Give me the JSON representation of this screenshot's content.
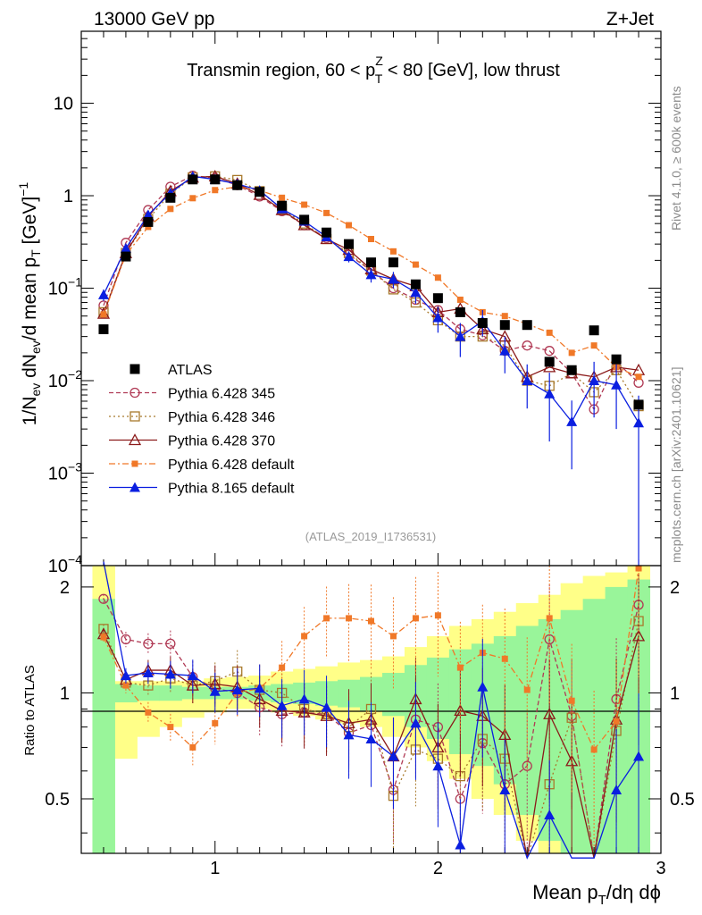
{
  "header": {
    "left": "13000 GeV pp",
    "right": "Z+Jet"
  },
  "side": {
    "rivet": "Rivet 4.1.0, ≥ 600k events",
    "mcplots": "mcplots.cern.ch [arXiv:2401.10621]"
  },
  "chart_data": [
    {
      "type": "line",
      "title": "Transmin region, 60 < p_T^Z < 80 [GeV], low thrust",
      "title_parts": {
        "pre": "Transmin region, 60 < p",
        "sup": "Z",
        "sub": "T",
        "post": " < 80 [GeV], low thrust"
      },
      "analysis_id": "(ATLAS_2019_I1736531)",
      "ylabel": "1/N_ev dN_ev/d mean p_T [GeV]^-1",
      "yscale": "log",
      "xlim": [
        0.4,
        3.0
      ],
      "ylim": [
        0.0001,
        60
      ],
      "y_ticks": [
        {
          "v": 10,
          "label": "10"
        },
        {
          "v": 1,
          "label": "1"
        },
        {
          "v": 0.1,
          "label": "10",
          "exp": "−1"
        },
        {
          "v": 0.01,
          "label": "10",
          "exp": "−2"
        },
        {
          "v": 0.001,
          "label": "10",
          "exp": "−3"
        },
        {
          "v": 0.0001,
          "label": "10",
          "exp": "−4"
        }
      ],
      "x": [
        0.5,
        0.6,
        0.7,
        0.8,
        0.9,
        1.0,
        1.1,
        1.2,
        1.3,
        1.4,
        1.5,
        1.6,
        1.7,
        1.8,
        1.9,
        2.0,
        2.1,
        2.2,
        2.3,
        2.4,
        2.5,
        2.6,
        2.7,
        2.8,
        2.9
      ],
      "legend": {
        "placement": "center-left",
        "entries": [
          "ATLAS",
          "Pythia 6.428 345",
          "Pythia 6.428 346",
          "Pythia 6.428 370",
          "Pythia 6.428 default",
          "Pythia 8.165 default"
        ]
      },
      "series": [
        {
          "name": "ATLAS",
          "color": "#000000",
          "marker": "square-filled",
          "dash": "none",
          "values": [
            0.036,
            0.22,
            0.52,
            0.95,
            1.5,
            1.5,
            1.3,
            1.1,
            0.78,
            0.55,
            0.4,
            0.3,
            0.19,
            0.19,
            0.11,
            0.078,
            0.055,
            0.042,
            0.04,
            0.04,
            0.016,
            0.013,
            0.035,
            0.017,
            0.0055
          ]
        },
        {
          "name": "Pythia 6.428 345",
          "color": "#b03a55",
          "marker": "circle-open",
          "dash": "5,3",
          "values": [
            0.065,
            0.31,
            0.7,
            1.25,
            1.65,
            1.55,
            1.3,
            0.98,
            0.68,
            0.48,
            0.35,
            0.23,
            0.155,
            0.1,
            0.075,
            0.058,
            0.036,
            0.031,
            0.021,
            0.024,
            0.021,
            0.012,
            0.0049,
            0.016,
            0.0095
          ]
        },
        {
          "name": "Pythia 6.428 346",
          "color": "#a8792c",
          "marker": "square-open",
          "dash": "2,3",
          "values": [
            0.055,
            0.24,
            0.56,
            1.05,
            1.58,
            1.62,
            1.48,
            1.12,
            0.72,
            0.5,
            0.34,
            0.24,
            0.155,
            0.097,
            0.07,
            0.045,
            0.03,
            0.03,
            0.024,
            0.01,
            0.0088,
            0.012,
            0.0075,
            0.013,
            0.0053
          ]
        },
        {
          "name": "Pythia 6.428 370",
          "color": "#8b1a1a",
          "marker": "triangle-open",
          "dash": "none",
          "values": [
            0.053,
            0.24,
            0.6,
            1.12,
            1.57,
            1.62,
            1.35,
            1.02,
            0.7,
            0.48,
            0.34,
            0.26,
            0.16,
            0.125,
            0.105,
            0.055,
            0.06,
            0.036,
            0.03,
            0.011,
            0.014,
            0.012,
            0.011,
            0.014,
            0.013
          ]
        },
        {
          "name": "Pythia 6.428 default",
          "color": "#f07828",
          "marker": "square-small-filled",
          "dash": "7,3,2,3",
          "values": [
            0.052,
            0.23,
            0.46,
            0.72,
            0.94,
            1.15,
            1.25,
            1.14,
            0.95,
            0.8,
            0.65,
            0.48,
            0.34,
            0.25,
            0.18,
            0.13,
            0.075,
            0.055,
            0.05,
            0.041,
            0.033,
            0.02,
            0.024,
            0.014,
            0.011
          ]
        },
        {
          "name": "Pythia 8.165 default",
          "color": "#0a1ee0",
          "marker": "triangle-filled",
          "dash": "none",
          "values": [
            0.085,
            0.27,
            0.62,
            1.07,
            1.62,
            1.5,
            1.34,
            1.14,
            0.72,
            0.53,
            0.36,
            0.22,
            0.14,
            0.125,
            0.09,
            0.048,
            0.03,
            0.044,
            0.021,
            0.01,
            0.0072,
            0.0036,
            0.01,
            0.009,
            0.0035
          ]
        }
      ],
      "errors": {
        "Pythia 8.165 default": [
          0.012,
          0.02,
          0.04,
          0.06,
          0.07,
          0.07,
          0.07,
          0.06,
          0.05,
          0.04,
          0.035,
          0.03,
          0.025,
          0.025,
          0.022,
          0.015,
          0.012,
          0.014,
          0.009,
          0.005,
          0.005,
          0.0025,
          0.006,
          0.006,
          0.0034
        ]
      }
    },
    {
      "type": "line",
      "title": "",
      "ylabel": "Ratio to ATLAS",
      "xlabel": "Mean p_T/dη dϕ",
      "xlabel_parts": {
        "pre": "Mean p",
        "sub": "T",
        "post": "/dη dϕ"
      },
      "xlim": [
        0.4,
        3.0
      ],
      "ylim": [
        0.35,
        2.3
      ],
      "x_ticks": [
        1,
        2,
        3
      ],
      "y_ticks": [
        0.5,
        1,
        2
      ],
      "reference_line": 1,
      "bands": {
        "x_low": [
          0.45,
          0.55,
          0.65,
          0.75,
          0.85,
          0.95,
          1.05,
          1.15,
          1.25,
          1.35,
          1.45,
          1.55,
          1.65,
          1.75,
          1.85,
          1.95,
          2.05,
          2.15,
          2.25,
          2.35,
          2.45,
          2.55,
          2.65,
          2.75,
          2.85
        ],
        "stat_up": [
          1.85,
          1.06,
          1.05,
          1.05,
          1.04,
          1.04,
          1.04,
          1.05,
          1.06,
          1.07,
          1.08,
          1.09,
          1.11,
          1.14,
          1.2,
          1.26,
          1.33,
          1.38,
          1.45,
          1.55,
          1.62,
          1.72,
          1.85,
          2.0,
          2.1
        ],
        "stat_down": [
          0.35,
          0.94,
          0.95,
          0.95,
          0.96,
          0.96,
          0.96,
          0.95,
          0.94,
          0.93,
          0.92,
          0.91,
          0.89,
          0.86,
          0.8,
          0.74,
          0.67,
          0.62,
          0.55,
          0.45,
          0.38,
          0.35,
          0.35,
          0.35,
          0.35
        ],
        "tot_up": [
          2.3,
          1.08,
          1.08,
          1.08,
          1.08,
          1.1,
          1.11,
          1.12,
          1.15,
          1.17,
          1.19,
          1.22,
          1.24,
          1.27,
          1.35,
          1.45,
          1.55,
          1.62,
          1.7,
          1.8,
          1.9,
          2.05,
          2.15,
          2.2,
          2.3
        ],
        "tot_down": [
          0.35,
          0.65,
          0.75,
          0.8,
          0.85,
          0.88,
          0.9,
          0.9,
          0.88,
          0.86,
          0.84,
          0.82,
          0.8,
          0.75,
          0.7,
          0.64,
          0.57,
          0.5,
          0.45,
          0.38,
          0.35,
          0.35,
          0.35,
          0.35,
          0.35
        ],
        "colors": {
          "total": "#ffff88",
          "stat": "#99f59a"
        }
      },
      "series": [
        {
          "name": "Pythia 6.428 345",
          "color": "#b03a55",
          "marker": "circle-open",
          "dash": "5,3",
          "values": [
            1.85,
            1.42,
            1.38,
            1.38,
            1.11,
            1.03,
            1.0,
            0.91,
            0.87,
            0.88,
            0.87,
            0.77,
            0.81,
            0.53,
            0.84,
            0.8,
            0.5,
            0.72,
            0.55,
            0.62,
            1.42,
            0.86,
            0.14,
            0.96,
            1.78
          ]
        },
        {
          "name": "Pythia 6.428 346",
          "color": "#a8792c",
          "marker": "square-open",
          "dash": "2,3",
          "values": [
            1.52,
            1.07,
            1.05,
            1.1,
            1.05,
            1.08,
            1.15,
            1.02,
            1.0,
            0.9,
            0.87,
            0.8,
            0.9,
            0.51,
            0.69,
            0.65,
            0.58,
            0.74,
            0.65,
            0.26,
            0.55,
            0.85,
            0.23,
            0.78,
            1.6
          ]
        },
        {
          "name": "Pythia 6.428 370",
          "color": "#8b1a1a",
          "marker": "triangle-open",
          "dash": "none",
          "values": [
            1.47,
            1.09,
            1.16,
            1.16,
            1.05,
            1.06,
            1.04,
            0.96,
            0.89,
            0.88,
            0.86,
            0.82,
            0.84,
            0.66,
            0.96,
            0.7,
            0.89,
            0.86,
            0.76,
            0.33,
            0.87,
            0.64,
            0.31,
            0.84,
            1.45
          ]
        },
        {
          "name": "Pythia 6.428 default",
          "color": "#f07828",
          "marker": "square-small-filled",
          "dash": "7,3,2,3",
          "values": [
            1.44,
            1.05,
            0.88,
            0.8,
            0.7,
            0.82,
            1.0,
            1.03,
            1.18,
            1.45,
            1.63,
            1.63,
            1.6,
            1.45,
            1.63,
            1.66,
            1.18,
            1.3,
            1.25,
            1.02,
            1.63,
            0.95,
            0.69,
            0.83,
            2.26
          ]
        },
        {
          "name": "Pythia 8.165 default",
          "color": "#0a1ee0",
          "marker": "triangle-filled",
          "dash": "none",
          "values": [
            2.36,
            1.12,
            1.14,
            1.13,
            1.12,
            1.01,
            1.02,
            1.03,
            0.92,
            0.96,
            0.91,
            0.76,
            0.74,
            0.66,
            0.82,
            0.62,
            0.37,
            1.04,
            0.53,
            0.25,
            0.45,
            0.28,
            0.28,
            0.53,
            0.66
          ]
        }
      ]
    }
  ]
}
